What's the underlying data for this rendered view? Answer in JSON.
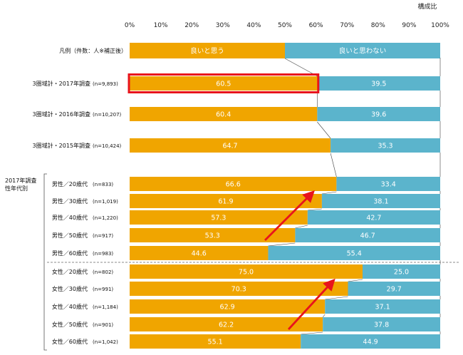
{
  "chart_data": {
    "type": "bar",
    "orientation": "horizontal",
    "stacked": true,
    "unit_label": "構成比",
    "x_ticks": [
      "0%",
      "10%",
      "20%",
      "30%",
      "40%",
      "50%",
      "60%",
      "70%",
      "80%",
      "90%",
      "100%"
    ],
    "xlim": [
      0,
      100
    ],
    "legend": {
      "label": "凡例（件数：人※補正後）",
      "series": [
        "良いと思う",
        "良いと思わない"
      ]
    },
    "series": [
      {
        "name": "良いと思う",
        "color": "#f0a500"
      },
      {
        "name": "良いと思わない",
        "color": "#5bb4cc"
      }
    ],
    "side_label": "2017年調査\n性年代別",
    "rows": [
      {
        "label": "3圏域計・2017年調査",
        "n": "(n=9,893)",
        "values": [
          60.5,
          39.5
        ],
        "labels": [
          "60.5",
          "39.5"
        ],
        "highlight": true
      },
      {
        "label": "3圏域計・2016年調査",
        "n": "(n=10,207)",
        "values": [
          60.4,
          39.6
        ],
        "labels": [
          "60.4",
          "39.6"
        ]
      },
      {
        "label": "3圏域計・2015年調査",
        "n": "(n=10,424)",
        "values": [
          64.7,
          35.3
        ],
        "labels": [
          "64.7",
          "35.3"
        ]
      },
      {
        "label": "男性／20歳代",
        "n": "(n=833)",
        "values": [
          66.6,
          33.4
        ],
        "labels": [
          "66.6",
          "33.4"
        ]
      },
      {
        "label": "男性／30歳代",
        "n": "(n=1,019)",
        "values": [
          61.9,
          38.1
        ],
        "labels": [
          "61.9",
          "38.1"
        ]
      },
      {
        "label": "男性／40歳代",
        "n": "(n=1,220)",
        "values": [
          57.3,
          42.7
        ],
        "labels": [
          "57.3",
          "42.7"
        ]
      },
      {
        "label": "男性／50歳代",
        "n": "(n=917)",
        "values": [
          53.3,
          46.7
        ],
        "labels": [
          "53.3",
          "46.7"
        ]
      },
      {
        "label": "男性／60歳代",
        "n": "(n=983)",
        "values": [
          44.6,
          55.4
        ],
        "labels": [
          "44.6",
          "55.4"
        ]
      },
      {
        "label": "女性／20歳代",
        "n": "(n=802)",
        "values": [
          75.0,
          25.0
        ],
        "labels": [
          "75.0",
          "25.0"
        ]
      },
      {
        "label": "女性／30歳代",
        "n": "(n=991)",
        "values": [
          70.3,
          29.7
        ],
        "labels": [
          "70.3",
          "29.7"
        ]
      },
      {
        "label": "女性／40歳代",
        "n": "(n=1,184)",
        "values": [
          62.9,
          37.1
        ],
        "labels": [
          "62.9",
          "37.1"
        ]
      },
      {
        "label": "女性／50歳代",
        "n": "(n=901)",
        "values": [
          62.2,
          37.8
        ],
        "labels": [
          "62.2",
          "37.8"
        ]
      },
      {
        "label": "女性／60歳代",
        "n": "(n=1,042)",
        "values": [
          55.1,
          44.9
        ],
        "labels": [
          "55.1",
          "44.9"
        ]
      }
    ],
    "colors": {
      "agree": "#f0a500",
      "disagree": "#5bb4cc",
      "highlight": "#e8141c",
      "arrow": "#e8141c"
    }
  }
}
